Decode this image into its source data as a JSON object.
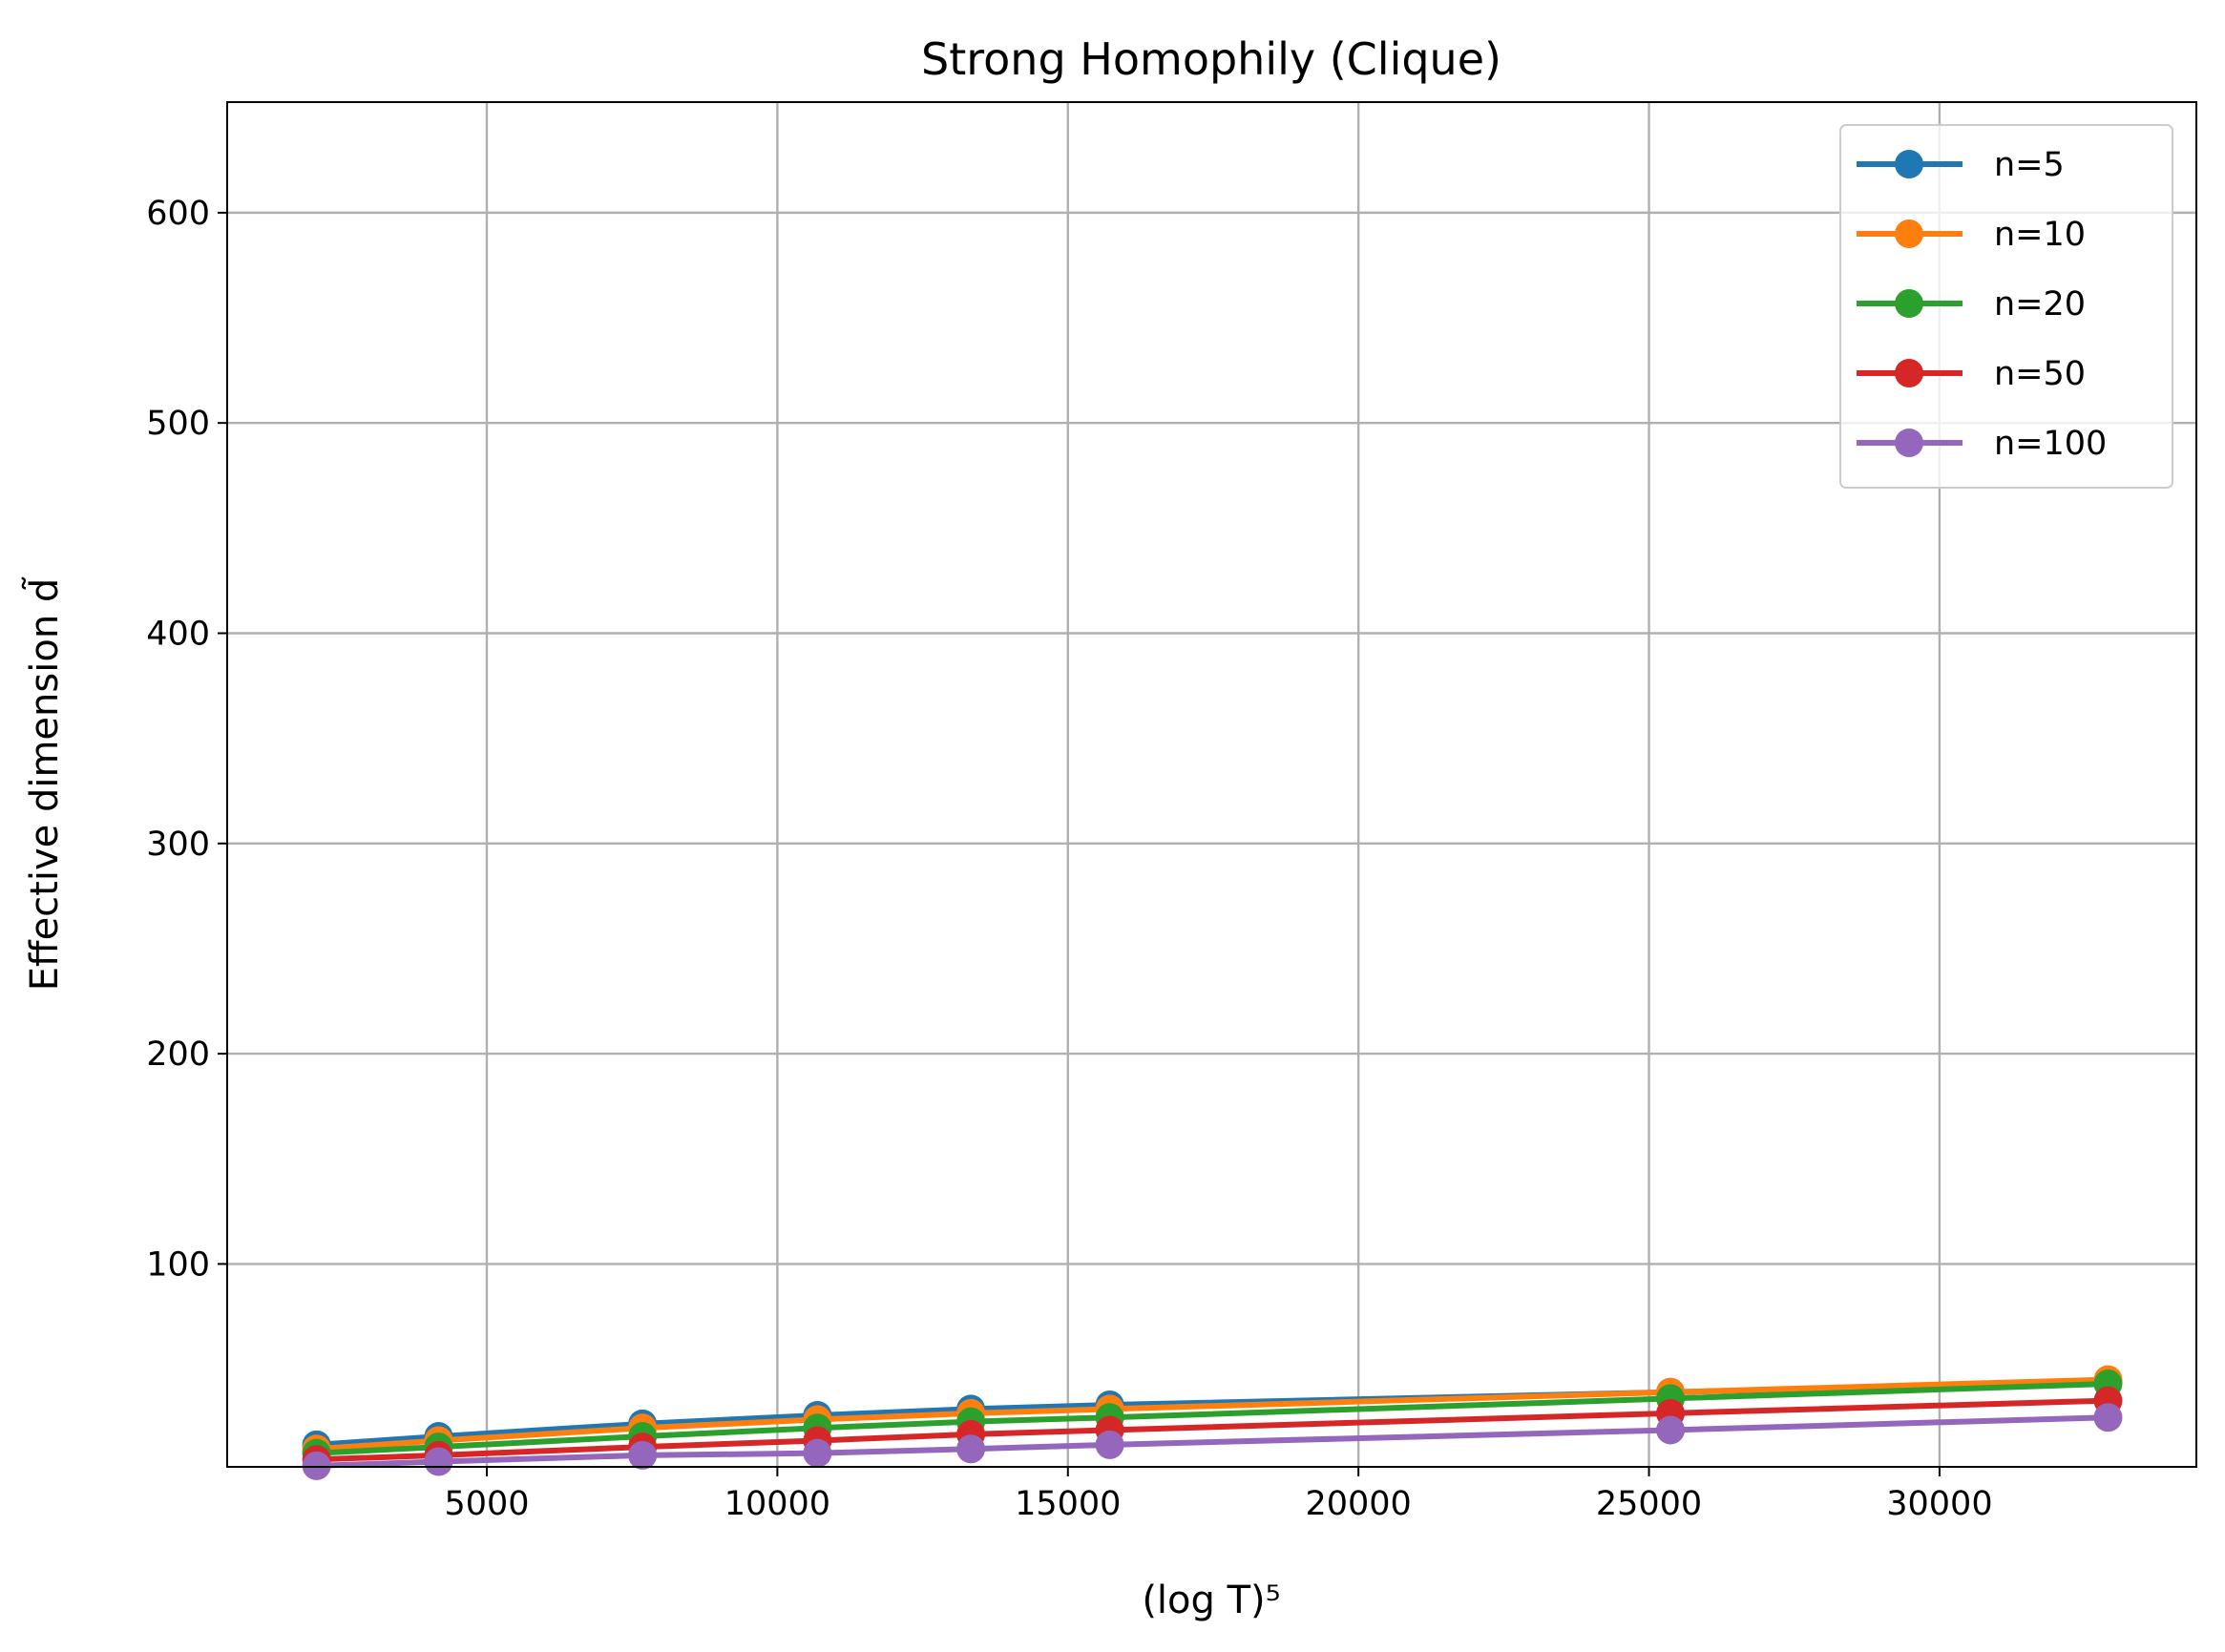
{
  "chart_data": {
    "type": "line",
    "title": "Strong Homophily (Clique)",
    "x_label": "(log T)⁵",
    "y_label": "Effective dimension d̃",
    "x": [
      2070,
      4170,
      7680,
      10690,
      13330,
      15720,
      25370,
      32900
    ],
    "series": [
      {
        "name": "n=5",
        "color": "#1f77b4",
        "values": [
          14,
          18,
          24,
          28,
          31,
          33,
          39,
          44
        ]
      },
      {
        "name": "n=10",
        "color": "#ff7f0e",
        "values": [
          12,
          16,
          22,
          26,
          29,
          31,
          39,
          45
        ]
      },
      {
        "name": "n=20",
        "color": "#2ca02c",
        "values": [
          10,
          13,
          18,
          22,
          25,
          27,
          36,
          43
        ]
      },
      {
        "name": "n=50",
        "color": "#d62728",
        "values": [
          7,
          9,
          13,
          16,
          19,
          21,
          29,
          35
        ]
      },
      {
        "name": "n=100",
        "color": "#9467bd",
        "values": [
          4,
          6,
          9,
          10,
          12,
          14,
          21,
          27
        ]
      }
    ],
    "xlim": [
      532,
      34420
    ],
    "ylim": [
      3.5,
      652.6
    ],
    "xticks": [
      5000,
      10000,
      15000,
      20000,
      25000,
      30000
    ],
    "yticks": [
      100,
      200,
      300,
      400,
      500,
      600
    ],
    "grid": true,
    "legend": "upper right"
  }
}
